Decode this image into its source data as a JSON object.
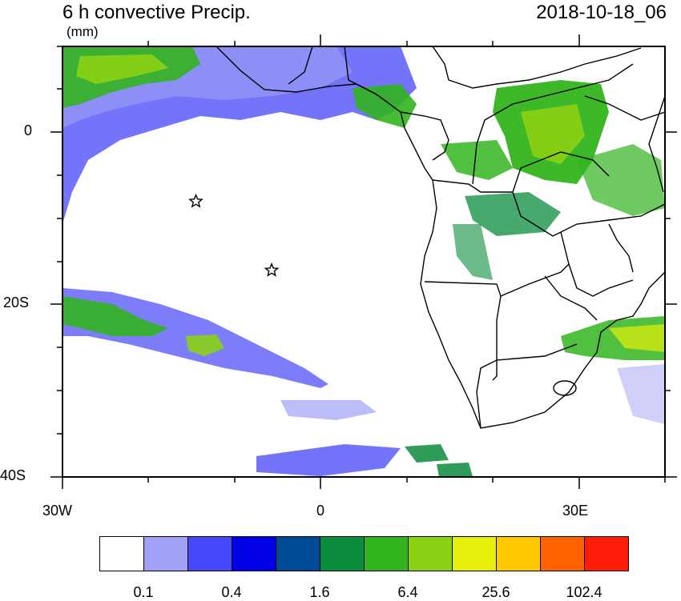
{
  "header": {
    "title": "6 h convective Precip.",
    "timestamp": "2018-10-18_06",
    "units": "(mm)"
  },
  "map": {
    "lon_range": [
      -30,
      40
    ],
    "lat_range": [
      -40,
      10
    ],
    "x_ticks": [
      "30W",
      "0",
      "30E"
    ],
    "y_ticks": [
      "0",
      "20S",
      "40S"
    ],
    "markers": [
      {
        "name": "star-marker-1",
        "lon": -14.5,
        "lat": -8.0
      },
      {
        "name": "star-marker-2",
        "lon": -5.7,
        "lat": -16.0
      }
    ],
    "land_outline_color": "#000000",
    "ocean_color": "#ffffff"
  },
  "colorbar": {
    "colors": [
      "#ffffff",
      "#a0a0f5",
      "#4646fa",
      "#0000e6",
      "#004b96",
      "#0a8c3c",
      "#32b41e",
      "#8cd214",
      "#e6f00a",
      "#ffc800",
      "#ff6400",
      "#ff1e0a"
    ],
    "labels": [
      "0.1",
      "0.4",
      "1.6",
      "6.4",
      "25.6",
      "102.4"
    ]
  }
}
